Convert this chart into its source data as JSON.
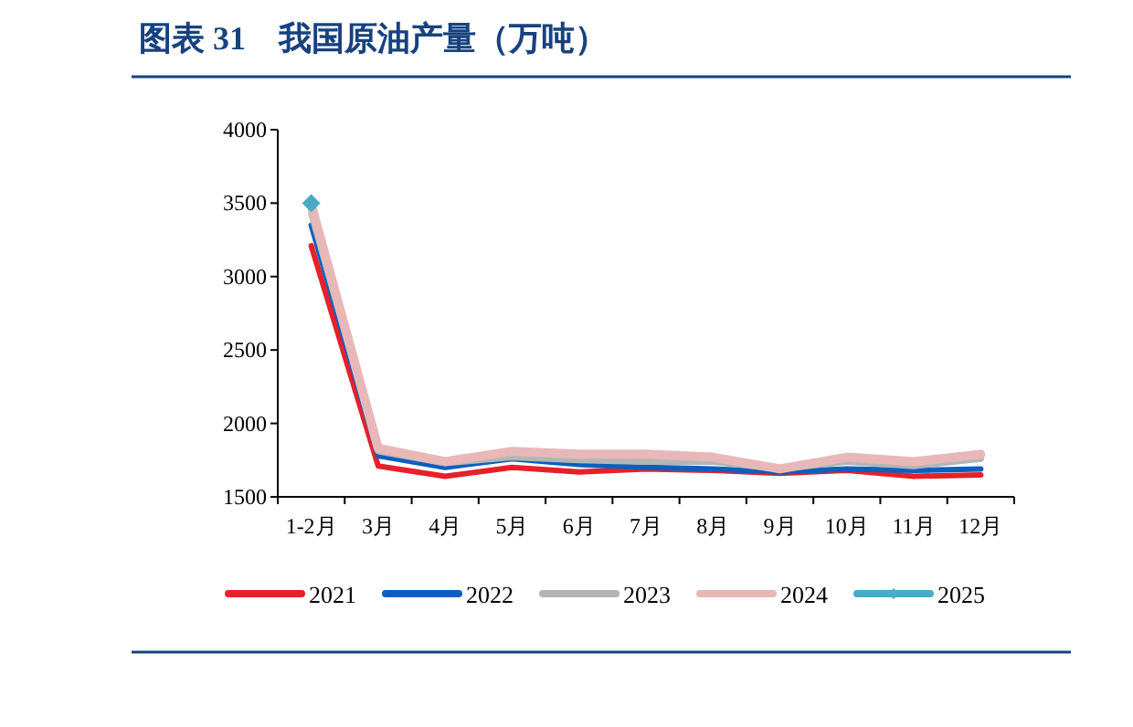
{
  "chart_data": {
    "type": "line",
    "title": "图表 31　我国原油产量（万吨）",
    "categories": [
      "1-2月",
      "3月",
      "4月",
      "5月",
      "6月",
      "7月",
      "8月",
      "9月",
      "10月",
      "11月",
      "12月"
    ],
    "series": [
      {
        "name": "2021",
        "color": "#e8202a",
        "values": [
          3210,
          1710,
          1640,
          1700,
          1670,
          1690,
          1680,
          1660,
          1680,
          1640,
          1650
        ]
      },
      {
        "name": "2022",
        "color": "#0a5fbd",
        "values": [
          3350,
          1780,
          1700,
          1760,
          1720,
          1700,
          1690,
          1670,
          1690,
          1680,
          1690
        ]
      },
      {
        "name": "2023",
        "color": "#b4b4b4",
        "values": [
          3430,
          1810,
          1730,
          1770,
          1750,
          1740,
          1740,
          1690,
          1740,
          1710,
          1760
        ]
      },
      {
        "name": "2024",
        "color": "#e8b8b8",
        "values": [
          3490,
          1830,
          1740,
          1810,
          1790,
          1790,
          1770,
          1690,
          1770,
          1740,
          1790
        ]
      },
      {
        "name": "2025",
        "color": "#4aaac8",
        "marker": "diamond",
        "values": [
          3500,
          null,
          null,
          null,
          null,
          null,
          null,
          null,
          null,
          null,
          null
        ]
      }
    ],
    "ylim": [
      1500,
      4000
    ],
    "yticks": [
      1500,
      2000,
      2500,
      3000,
      3500,
      4000
    ],
    "grid": false,
    "legend": "bottom",
    "marker": "none",
    "line_style": "solid"
  }
}
